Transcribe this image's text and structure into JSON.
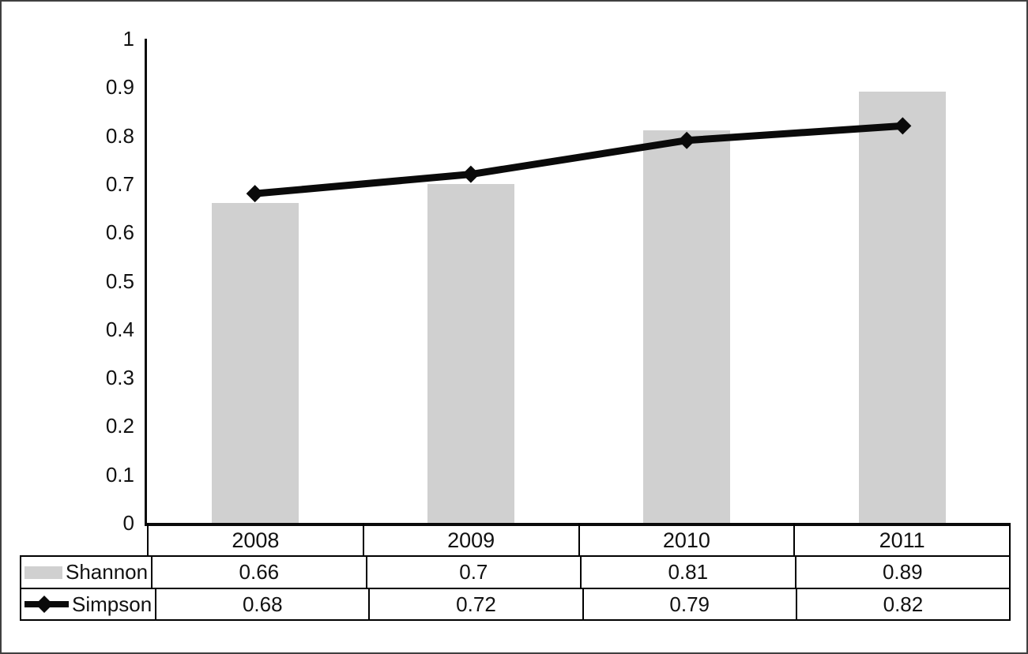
{
  "chart_data": {
    "type": "bar",
    "subtype": "bar+line combo",
    "categories": [
      "2008",
      "2009",
      "2010",
      "2011"
    ],
    "series": [
      {
        "name": "Shannon",
        "render": "bar",
        "values": [
          0.66,
          0.7,
          0.81,
          0.89
        ]
      },
      {
        "name": "Simpson",
        "render": "line",
        "values": [
          0.68,
          0.72,
          0.79,
          0.82
        ]
      }
    ],
    "title": "",
    "xlabel": "",
    "ylabel": "",
    "ylim": [
      0,
      1
    ],
    "y_ticks": [
      0,
      0.1,
      0.2,
      0.3,
      0.4,
      0.5,
      0.6,
      0.7,
      0.8,
      0.9,
      1
    ],
    "grid": false,
    "legend_position": "data-table-below-chart",
    "marker": "diamond"
  },
  "colors": {
    "bar_fill": "#d0d0d0",
    "line_color": "#0a0a0a",
    "axis_color": "#0a0a0a",
    "table_border": "#000000"
  }
}
